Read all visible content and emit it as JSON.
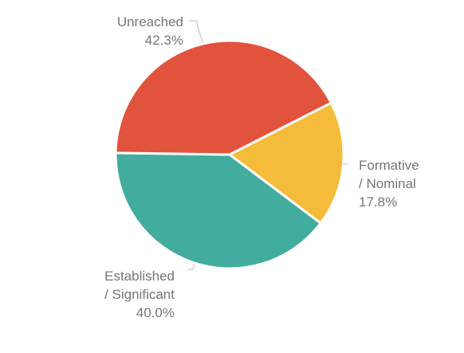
{
  "chart_data": {
    "type": "pie",
    "slices": [
      {
        "label_lines": [
          "Formative",
          "/ Nominal"
        ],
        "percent_text": "17.8%",
        "value": 17.8,
        "color": "#f4bc3a"
      },
      {
        "label_lines": [
          "Established",
          "/ Significant"
        ],
        "percent_text": "40.0%",
        "value": 40.0,
        "color": "#42ad9e"
      },
      {
        "label_lines": [
          "Unreached"
        ],
        "percent_text": "42.3%",
        "value": 42.3,
        "color": "#e2533e"
      }
    ],
    "start_angle_deg": 27,
    "direction": "clockwise",
    "legend": "none",
    "title": ""
  }
}
